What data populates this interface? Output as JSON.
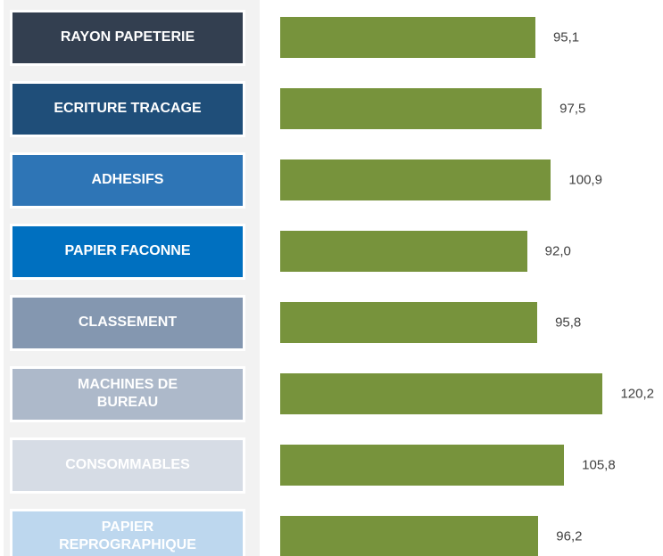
{
  "chart_data": {
    "type": "bar",
    "orientation": "horizontal",
    "categories": [
      "RAYON PAPETERIE",
      "ECRITURE TRACAGE",
      "ADHESIFS",
      "PAPIER FACONNE",
      "CLASSEMENT",
      "MACHINES DE\nBUREAU",
      "CONSOMMABLES",
      "PAPIER\nREPROGRAPHIQUE"
    ],
    "category_colors": [
      "#333f50",
      "#1f4e79",
      "#2e75b6",
      "#0070c0",
      "#8497b0",
      "#adb9ca",
      "#d6dce5",
      "#bdd7ee"
    ],
    "values": [
      95.1,
      97.5,
      100.9,
      92.0,
      95.8,
      120.2,
      105.8,
      96.2
    ],
    "value_labels": [
      "95,1",
      "97,5",
      "100,9",
      "92,0",
      "95,8",
      "120,2",
      "105,8",
      "96,2"
    ],
    "color": "#77933c"
  }
}
